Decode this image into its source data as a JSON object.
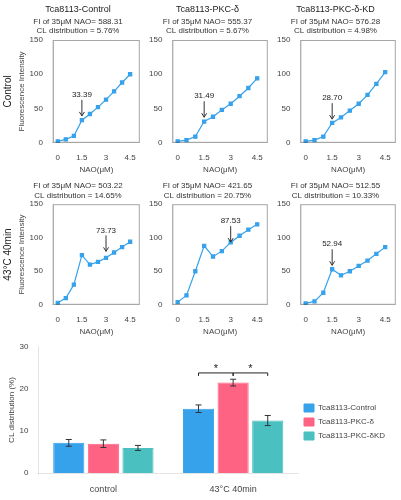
{
  "chart_data": [
    {
      "type": "line",
      "title": "Tca8113-Control",
      "subtitle": "FI of 35μM NAO= 588.31\nCL distribution = 5.76%",
      "x": [
        0,
        0.5,
        1.0,
        1.5,
        2.0,
        2.5,
        3.0,
        3.5,
        4.0,
        4.5
      ],
      "values": [
        2,
        5,
        10,
        33,
        42,
        52,
        63,
        75,
        88,
        100
      ],
      "color": "#36a2eb",
      "marker": "square",
      "line_style": "solid",
      "xlabel": "NAO(μM)",
      "ylabel": "Fluorescence Intensity",
      "xlim": [
        -0.3,
        5.1
      ],
      "xticks": [
        0,
        1.5,
        3,
        4.5
      ],
      "ylim": [
        0,
        150
      ],
      "yticks": [
        0,
        50,
        100,
        150
      ],
      "grid": false,
      "annotations": [
        {
          "text": "33.39",
          "x": 1.5,
          "y": 33.39
        },
        {
          "text": "Control"
        }
      ]
    },
    {
      "type": "line",
      "title": "Tca8113-PKC-δ",
      "subtitle": "FI of 35μM NAO= 555.37\nCL distribution = 5.67%",
      "x": [
        0,
        0.5,
        1.0,
        1.5,
        2.0,
        2.5,
        3.0,
        3.5,
        4.0,
        4.5
      ],
      "values": [
        2,
        4,
        9,
        31,
        38,
        48,
        57,
        68,
        80,
        94
      ],
      "color": "#36a2eb",
      "marker": "square",
      "line_style": "solid",
      "xlabel": "NAO(μM)",
      "xlim": [
        -0.3,
        5.1
      ],
      "xticks": [
        0,
        1.5,
        3,
        4.5
      ],
      "ylim": [
        0,
        150
      ],
      "yticks": [
        0,
        50,
        100,
        150
      ],
      "grid": false,
      "annotations": [
        {
          "text": "31.49",
          "x": 1.5,
          "y": 31.49
        }
      ]
    },
    {
      "type": "line",
      "title": "Tca8113-PKC-δ-KD",
      "subtitle": "FI of 35μM NAO= 576.28\nCL distribution = 4.98%",
      "x": [
        0,
        0.5,
        1.0,
        1.5,
        2.0,
        2.5,
        3.0,
        3.5,
        4.0,
        4.5
      ],
      "values": [
        2,
        4,
        9,
        29,
        37,
        47,
        57,
        70,
        86,
        103
      ],
      "color": "#36a2eb",
      "marker": "square",
      "line_style": "solid",
      "xlabel": "NAO(μM)",
      "xlim": [
        -0.3,
        5.1
      ],
      "xticks": [
        0,
        1.5,
        3,
        4.5
      ],
      "ylim": [
        0,
        150
      ],
      "yticks": [
        0,
        50,
        100,
        150
      ],
      "grid": false,
      "annotations": [
        {
          "text": "28.70",
          "x": 1.5,
          "y": 28.7
        }
      ]
    },
    {
      "type": "line",
      "subtitle": "FI of 35μM NAO= 503.22\nCL distribution = 14.65%",
      "x": [
        0,
        0.5,
        1.0,
        1.5,
        2.0,
        2.5,
        3.0,
        3.5,
        4.0,
        4.5
      ],
      "values": [
        3,
        10,
        30,
        74,
        60,
        64,
        70,
        78,
        86,
        94
      ],
      "color": "#36a2eb",
      "marker": "square",
      "line_style": "solid",
      "xlabel": "NAO(μM)",
      "ylabel": "Fluorescence Intensity",
      "xlim": [
        -0.3,
        5.1
      ],
      "xticks": [
        0,
        1.5,
        3,
        4.5
      ],
      "ylim": [
        0,
        150
      ],
      "yticks": [
        0,
        50,
        100,
        150
      ],
      "grid": false,
      "annotations": [
        {
          "text": "73.73",
          "x": 3.0,
          "y": 73.73
        },
        {
          "text": "43°C 40min"
        }
      ]
    },
    {
      "type": "line",
      "subtitle": "FI of 35μM NAO= 421.65\nCL distribution = 20.75%",
      "x": [
        0,
        0.5,
        1.0,
        1.5,
        2.0,
        2.5,
        3.0,
        3.5,
        4.0,
        4.5
      ],
      "values": [
        4,
        14,
        50,
        88,
        72,
        80,
        93,
        103,
        112,
        120
      ],
      "color": "#36a2eb",
      "marker": "square",
      "line_style": "solid",
      "xlabel": "NAO(μM)",
      "xlim": [
        -0.3,
        5.1
      ],
      "xticks": [
        0,
        1.5,
        3,
        4.5
      ],
      "ylim": [
        0,
        150
      ],
      "yticks": [
        0,
        50,
        100,
        150
      ],
      "grid": false,
      "annotations": [
        {
          "text": "87.53",
          "x": 3.0,
          "y": 87.53
        }
      ]
    },
    {
      "type": "line",
      "subtitle": "FI of 35μM NAO= 512.55\nCL distribution = 10.33%",
      "x": [
        0,
        0.5,
        1.0,
        1.5,
        2.0,
        2.5,
        3.0,
        3.5,
        4.0,
        4.5
      ],
      "values": [
        2,
        5,
        18,
        53,
        44,
        50,
        58,
        66,
        76,
        86
      ],
      "color": "#36a2eb",
      "marker": "square",
      "line_style": "solid",
      "xlabel": "NAO(μM)",
      "xlim": [
        -0.3,
        5.1
      ],
      "xticks": [
        0,
        1.5,
        3,
        4.5
      ],
      "ylim": [
        0,
        150
      ],
      "yticks": [
        0,
        50,
        100,
        150
      ],
      "grid": false,
      "annotations": [
        {
          "text": "52.94",
          "x": 1.5,
          "y": 52.94
        }
      ]
    },
    {
      "type": "bar",
      "categories": [
        "control",
        "43°C 40min"
      ],
      "series": [
        {
          "name": "Tca8113-Control",
          "color": "#36a2eb",
          "values": [
            7.2,
            15.3
          ],
          "errors": [
            0.8,
            0.9
          ]
        },
        {
          "name": "Tca8113-PKC-δ",
          "color": "#ff6384",
          "values": [
            7.0,
            21.5
          ],
          "errors": [
            0.9,
            0.8
          ]
        },
        {
          "name": "Tca8113-PKC-δKD",
          "color": "#4bc0c0",
          "values": [
            6.0,
            12.5
          ],
          "errors": [
            0.6,
            1.2
          ]
        }
      ],
      "ylabel": "CL distribution (%)",
      "ylim": [
        0,
        30
      ],
      "yticks": [
        0,
        10,
        20,
        30
      ],
      "grid": false,
      "legend": "right",
      "annotations": [
        {
          "text": "*",
          "category": "43°C 40min",
          "between": [
            "Tca8113-Control",
            "Tca8113-PKC-δ"
          ],
          "y": 23.8
        },
        {
          "text": "*",
          "category": "43°C 40min",
          "between": [
            "Tca8113-PKC-δ",
            "Tca8113-PKC-δKD"
          ],
          "y": 23.8
        }
      ]
    }
  ]
}
